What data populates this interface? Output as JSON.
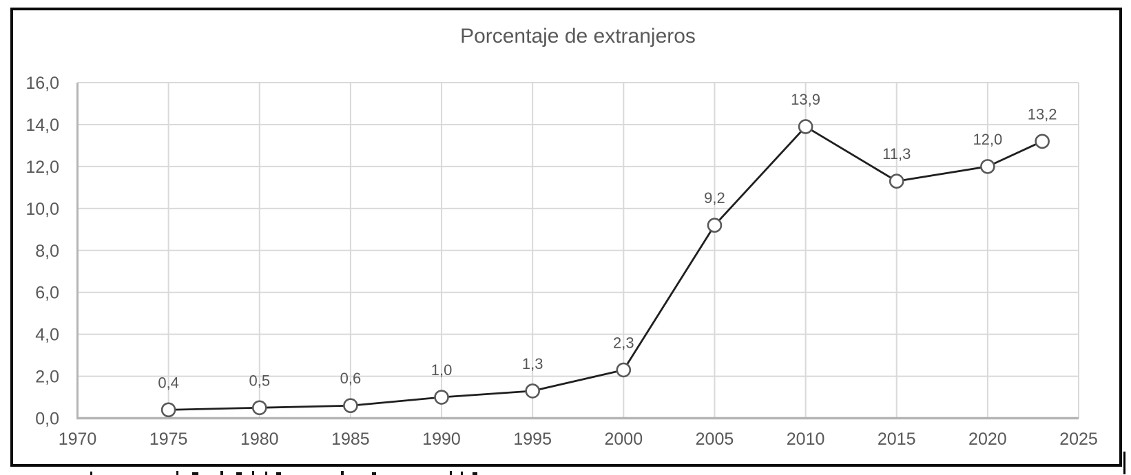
{
  "chart_data": {
    "type": "line",
    "title": "Porcentaje de extranjeros",
    "x": [
      1975,
      1980,
      1985,
      1990,
      1995,
      2000,
      2005,
      2010,
      2015,
      2020,
      2023
    ],
    "values": [
      0.4,
      0.5,
      0.6,
      1.0,
      1.3,
      2.3,
      9.2,
      13.9,
      11.3,
      12.0,
      13.2
    ],
    "point_labels": [
      "0,4",
      "0,5",
      "0,6",
      "1,0",
      "1,3",
      "2,3",
      "9,2",
      "13,9",
      "11,3",
      "12,0",
      "13,2"
    ],
    "x_tick_values": [
      1970,
      1975,
      1980,
      1985,
      1990,
      1995,
      2000,
      2005,
      2010,
      2015,
      2020,
      2025
    ],
    "x_tick_labels": [
      "1970",
      "1975",
      "1980",
      "1985",
      "1990",
      "1995",
      "2000",
      "2005",
      "2010",
      "2015",
      "2020",
      "2025"
    ],
    "y_tick_values": [
      0,
      2,
      4,
      6,
      8,
      10,
      12,
      14,
      16
    ],
    "y_tick_labels": [
      "0,0",
      "2,0",
      "4,0",
      "6,0",
      "8,0",
      "10,0",
      "12,0",
      "14,0",
      "16,0"
    ],
    "xlim": [
      1970,
      2025
    ],
    "ylim": [
      0,
      16
    ],
    "grid": true,
    "legend": "none",
    "colors": {
      "line": "#1f1f1f",
      "marker_stroke": "#595959",
      "marker_fill": "#ffffff",
      "gridline": "#d9d9d9",
      "axis_line": "#b5b5b5",
      "tick_text": "#595959",
      "data_label_text": "#565656",
      "title_text": "#595959",
      "frame_border": "#0a0a0a"
    }
  }
}
